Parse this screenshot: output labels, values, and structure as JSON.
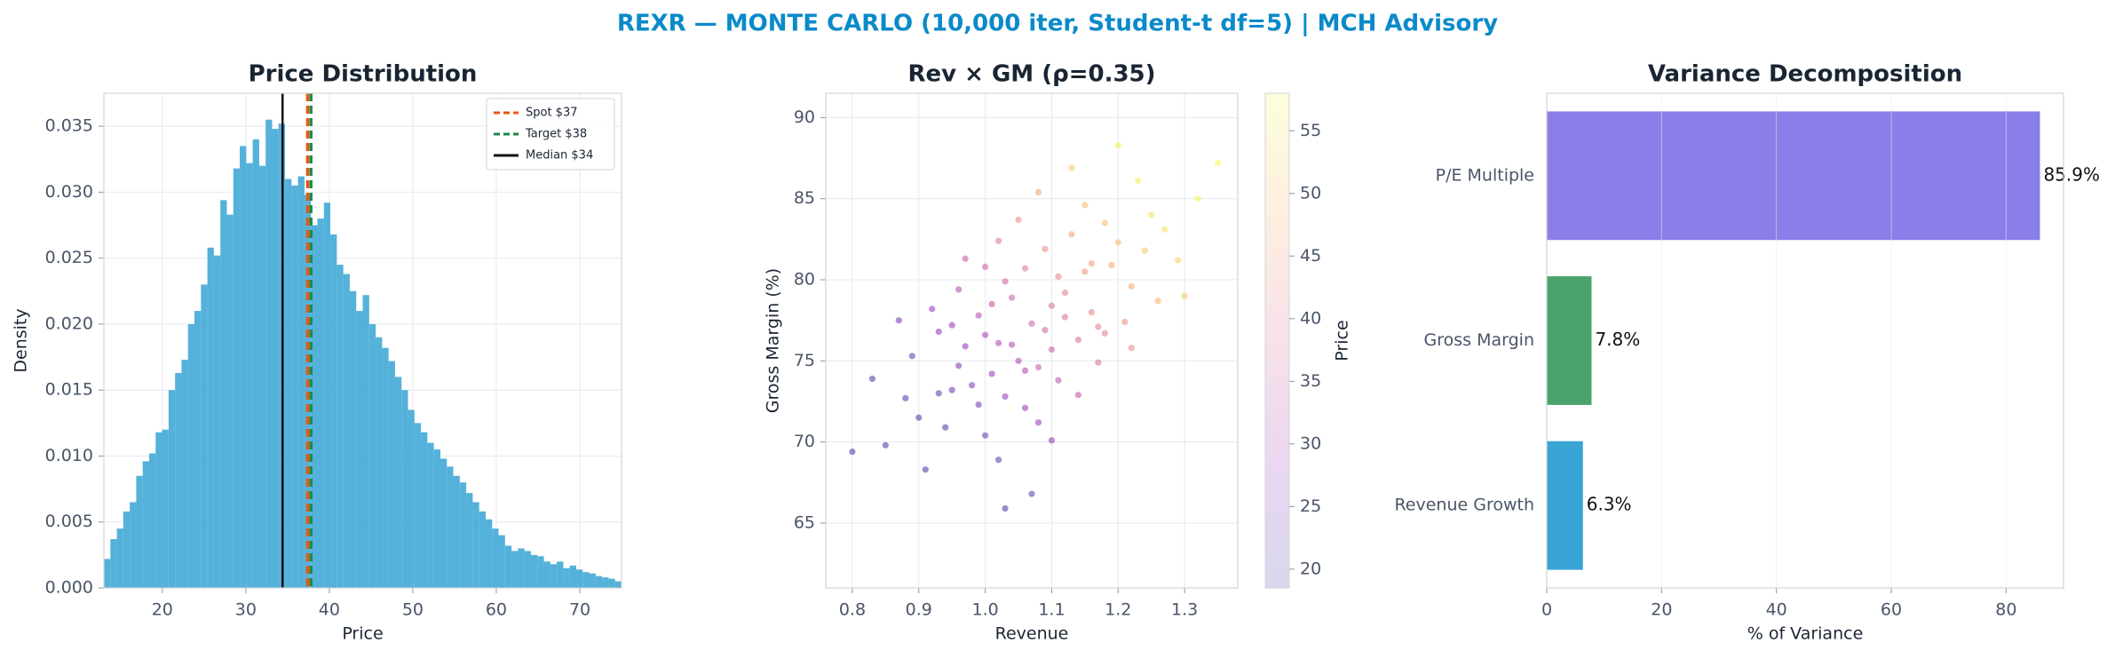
{
  "title": "REXR — MONTE CARLO (10,000 iter, Student-t df=5) | MCH Advisory",
  "chart_data": [
    {
      "type": "histogram",
      "title": "Price Distribution",
      "x_label": "Price",
      "y_label": "Density",
      "color": "#4badd8",
      "grid": true,
      "legend": "upper right",
      "xlim": [
        13,
        75
      ],
      "ylim": [
        0,
        0.0375
      ],
      "xticks": [
        20,
        30,
        40,
        50,
        60,
        70
      ],
      "yticks": [
        {
          "value": 0,
          "label": "0.000"
        },
        {
          "value": 0.005,
          "label": "0.005"
        },
        {
          "value": 0.01,
          "label": "0.010"
        },
        {
          "value": 0.015,
          "label": "0.015"
        },
        {
          "value": 0.02,
          "label": "0.020"
        },
        {
          "value": 0.025,
          "label": "0.025"
        },
        {
          "value": 0.03,
          "label": "0.030"
        },
        {
          "value": 0.035,
          "label": "0.035"
        }
      ],
      "bins": [
        13,
        13.775,
        14.55,
        15.325,
        16.1,
        16.875,
        17.65,
        18.425,
        19.2,
        19.975,
        20.75,
        21.525,
        22.3,
        23.075,
        23.85,
        24.625,
        25.4,
        26.175,
        26.95,
        27.725,
        28.5,
        29.275,
        30.05,
        30.825,
        31.6,
        32.375,
        33.15,
        33.925,
        34.7,
        35.475,
        36.25,
        37.025,
        37.8,
        38.575,
        39.35,
        40.125,
        40.9,
        41.675,
        42.45,
        43.225,
        44,
        44.775,
        45.55,
        46.325,
        47.1,
        47.875,
        48.65,
        49.425,
        50.2,
        50.975,
        51.75,
        52.525,
        53.3,
        54.075,
        54.85,
        55.625,
        56.4,
        57.175,
        57.95,
        58.725,
        59.5,
        60.275,
        61.05,
        61.825,
        62.6,
        63.375,
        64.15,
        64.925,
        65.7,
        66.475,
        67.25,
        68.025,
        68.8,
        69.575,
        70.35,
        71.125,
        71.9,
        72.675,
        73.45,
        74.225,
        75
      ],
      "values": [
        0.0022,
        0.0037,
        0.0045,
        0.0058,
        0.0065,
        0.0085,
        0.0096,
        0.0102,
        0.0118,
        0.012,
        0.015,
        0.0163,
        0.0173,
        0.02,
        0.021,
        0.023,
        0.0258,
        0.0252,
        0.0294,
        0.0283,
        0.0318,
        0.0335,
        0.0322,
        0.034,
        0.032,
        0.0355,
        0.0348,
        0.0352,
        0.031,
        0.0305,
        0.0312,
        0.0298,
        0.0275,
        0.028,
        0.0292,
        0.0268,
        0.0245,
        0.0238,
        0.0225,
        0.021,
        0.0222,
        0.02,
        0.019,
        0.0182,
        0.0172,
        0.016,
        0.015,
        0.0135,
        0.0125,
        0.0118,
        0.011,
        0.0105,
        0.0098,
        0.0092,
        0.0085,
        0.008,
        0.0072,
        0.0065,
        0.0058,
        0.0052,
        0.0045,
        0.004,
        0.0032,
        0.0028,
        0.003,
        0.0028,
        0.0025,
        0.0024,
        0.002,
        0.0018,
        0.002,
        0.0015,
        0.0017,
        0.0014,
        0.0012,
        0.0011,
        0.0009,
        0.0008,
        0.0007,
        0.0005
      ],
      "lines": [
        {
          "label": "Spot $37",
          "value": 37.4,
          "color": "#e8590c",
          "style": "dashed"
        },
        {
          "label": "Target $38",
          "value": 37.8,
          "color": "#1e8a4a",
          "style": "dashed"
        },
        {
          "label": "Median $34",
          "value": 34.4,
          "color": "#111111",
          "style": "solid"
        }
      ]
    },
    {
      "type": "scatter",
      "title": "Rev × GM (ρ=0.35)",
      "x_label": "Revenue",
      "y_label": "Gross Margin (%)",
      "grid": true,
      "colormap": "plasma",
      "colorbar": {
        "label": "Price",
        "lim": [
          18.5,
          58
        ],
        "ticks": [
          20,
          25,
          30,
          35,
          40,
          45,
          50,
          55
        ]
      },
      "xlim": [
        0.76,
        1.38
      ],
      "ylim": [
        61,
        91.5
      ],
      "xticks": [
        0.8,
        0.9,
        {
          "value": 1,
          "label": "1.0"
        },
        1.1,
        1.2,
        1.3
      ],
      "yticks": [
        65,
        70,
        75,
        80,
        85,
        90
      ],
      "x": [
        1.02,
        1.1,
        0.95,
        1.15,
        1.05,
        0.99,
        1.2,
        1.08,
        0.9,
        1.12,
        1.03,
        1.17,
        0.97,
        1.25,
        1.06,
        1.0,
        1.14,
        0.93,
        1.09,
        1.22,
        1.04,
        0.88,
        1.11,
        1.01,
        1.18,
        0.96,
        1.07,
        1.29,
        0.85,
        1.13,
        1.02,
        1.16,
        0.98,
        1.23,
        1.06,
        0.92,
        1.1,
        1.19,
        1.0,
        1.27,
        1.05,
        0.94,
        1.12,
        1.03,
        1.21,
        0.89,
        1.08,
        1.15,
        0.99,
        1.32,
        1.04,
        0.83,
        1.11,
        1.17,
        0.97,
        1.24,
        1.07,
        1.13,
        1.01,
        0.91,
        1.09,
        1.26,
        1.02,
        1.14,
        0.95,
        1.2,
        1.06,
        0.87,
        1.35,
        1.1,
        0.8,
        1.16,
        1.03,
        1.22,
        0.96,
        1.08,
        1.3,
        1.0,
        0.93,
        1.18
      ],
      "y": [
        76.1,
        78.4,
        73.2,
        80.5,
        75.0,
        77.8,
        82.3,
        74.6,
        71.5,
        79.2,
        72.8,
        77.1,
        75.9,
        84.0,
        80.7,
        70.4,
        76.3,
        76.8,
        81.9,
        79.6,
        78.9,
        72.7,
        73.8,
        74.2,
        83.5,
        79.4,
        77.3,
        81.2,
        69.8,
        82.8,
        68.9,
        78.0,
        73.5,
        86.1,
        72.1,
        78.2,
        75.7,
        80.9,
        76.6,
        83.1,
        83.7,
        70.9,
        77.7,
        79.9,
        77.4,
        75.3,
        71.2,
        84.6,
        72.3,
        85.0,
        76.0,
        73.9,
        80.2,
        74.9,
        81.3,
        81.8,
        66.8,
        86.9,
        78.5,
        68.3,
        76.9,
        78.7,
        82.4,
        72.9,
        77.2,
        88.3,
        74.4,
        77.5,
        87.2,
        70.1,
        69.4,
        81.0,
        65.9,
        75.8,
        74.7,
        85.4,
        79.0,
        80.8,
        73.0,
        76.7
      ],
      "c": [
        30.8,
        38.6,
        22.9,
        44.4,
        31.2,
        31.2,
        49.7,
        35.1,
        19.5,
        40.9,
        27.1,
        41.1,
        27.6,
        54.9,
        39.2,
        22.2,
        38.3,
        26.3,
        42.6,
        47.4,
        35.7,
        19.0,
        33.2,
        27.8,
        50.1,
        31.5,
        35.4,
        53.7,
        19.2,
        46.1,
        21.5,
        41.7,
        25.1,
        56.4,
        28.0,
        27.6,
        35.1,
        47.3,
        30.3,
        54.9,
        42.5,
        19.3,
        38.9,
        36.4,
        43.9,
        22.0,
        28.1,
        49.7,
        24.1,
        57.5,
        31.9,
        19.8,
        41.6,
        38.3,
        34.6,
        51.4,
        21.7,
        51.5,
        33.4,
        20.1,
        36.1,
        48.6,
        39.0,
        33.9,
        28.1,
        57.0,
        31.0,
        23.7,
        57.6,
        27.6,
        19.0,
        45.6,
        19.4,
        42.4,
        25.4,
        46.5,
        51.4,
        35.7,
        21.4,
        41.2
      ]
    },
    {
      "type": "barh",
      "title": "Variance Decomposition",
      "x_label": "% of Variance",
      "grid": true,
      "categories": [
        "P/E Multiple",
        "Gross Margin",
        "Revenue Growth"
      ],
      "values": [
        85.9,
        7.8,
        6.3
      ],
      "value_labels": [
        "85.9%",
        "7.8%",
        "6.3%"
      ],
      "colors": [
        "#8a7fe8",
        "#4aa36b",
        "#39a4d6"
      ],
      "xlim": [
        0,
        90
      ],
      "xticks": [
        0,
        20,
        40,
        60,
        80
      ]
    }
  ]
}
